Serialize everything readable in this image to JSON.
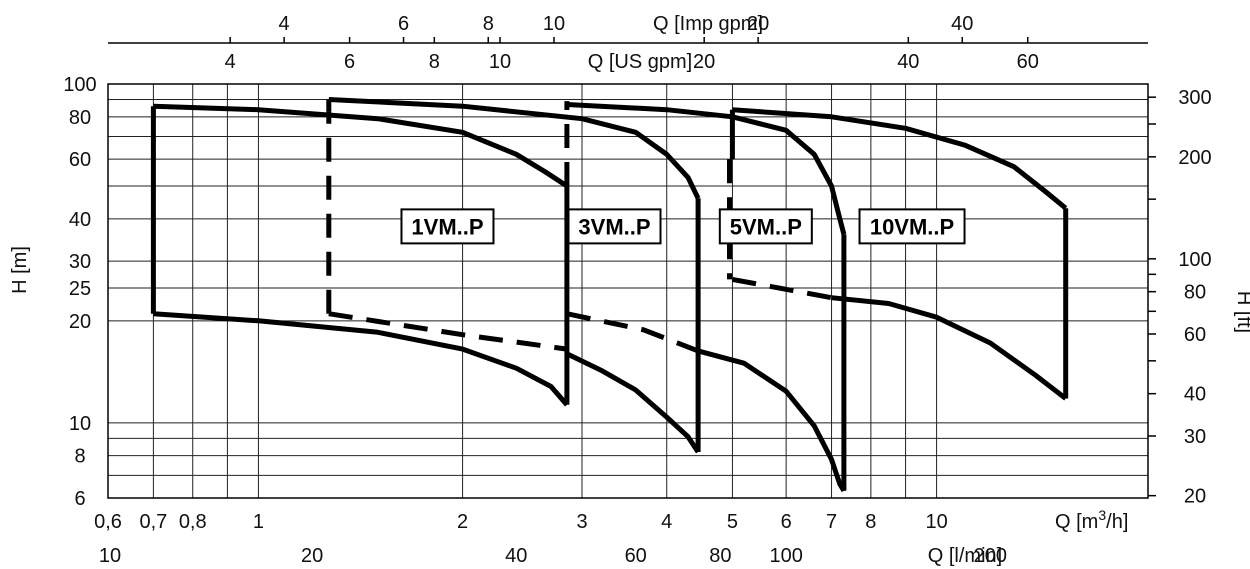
{
  "chart_data": {
    "type": "line",
    "scale": "log-log",
    "xlabel": "Q [m3/h]",
    "ylabel": "H [m]",
    "x_ticks": [
      0.6,
      0.7,
      0.8,
      1,
      2,
      3,
      4,
      5,
      6,
      7,
      8,
      10
    ],
    "x_tick_labels": [
      "0,6",
      "0,7",
      "0,8",
      "1",
      "2",
      "3",
      "4",
      "5",
      "6",
      "7",
      "8",
      "10"
    ],
    "xlim": [
      0.6,
      20.5
    ],
    "ylim": [
      6,
      100
    ],
    "y_ticks": [
      6,
      8,
      10,
      20,
      25,
      30,
      40,
      60,
      80,
      100
    ],
    "y_grid": [
      6,
      7,
      8,
      9,
      10,
      20,
      25,
      30,
      40,
      50,
      60,
      70,
      80,
      90,
      100
    ],
    "x_grid": [
      0.7,
      0.8,
      0.9,
      1,
      2,
      3,
      4,
      5,
      6,
      7,
      8,
      9,
      10
    ],
    "secondary_axes": {
      "lpm": {
        "label": "Q [l/min]",
        "ticks": [
          10,
          20,
          40,
          60,
          80,
          100,
          200
        ]
      },
      "us_gpm": {
        "label": "Q [US gpm]",
        "ticks": [
          4,
          6,
          8,
          10,
          20,
          40,
          60
        ]
      },
      "imp_gpm": {
        "label": "Q [Imp gpm]",
        "ticks": [
          4,
          6,
          8,
          10,
          20,
          40
        ]
      },
      "ft": {
        "label": "H [ft]",
        "ticks": [
          20,
          30,
          40,
          60,
          80,
          100,
          200,
          300
        ]
      }
    },
    "series": [
      {
        "name": "1VM..P",
        "label_at": [
          1.9,
          38
        ],
        "upper": [
          [
            0.7,
            86
          ],
          [
            1.0,
            84
          ],
          [
            1.5,
            79
          ],
          [
            2.0,
            72
          ],
          [
            2.4,
            62
          ],
          [
            2.65,
            55
          ],
          [
            2.85,
            50
          ]
        ],
        "lower": [
          [
            0.7,
            21
          ],
          [
            1.0,
            20
          ],
          [
            1.5,
            18.5
          ],
          [
            2.0,
            16.5
          ],
          [
            2.4,
            14.5
          ],
          [
            2.7,
            12.8
          ],
          [
            2.85,
            11.3
          ]
        ],
        "dashed": [
          [
            1.27,
            21
          ],
          [
            1.27,
            83
          ]
        ]
      },
      {
        "name": "3VM..P",
        "label_at": [
          3.35,
          38
        ],
        "upper": [
          [
            1.27,
            90
          ],
          [
            2.0,
            86
          ],
          [
            3.0,
            79
          ],
          [
            3.6,
            72
          ],
          [
            4.0,
            62
          ],
          [
            4.3,
            53
          ],
          [
            4.45,
            46
          ]
        ],
        "lower": [
          [
            2.85,
            16
          ],
          [
            3.2,
            14.3
          ],
          [
            3.6,
            12.5
          ],
          [
            4.0,
            10.4
          ],
          [
            4.3,
            9.1
          ],
          [
            4.45,
            8.2
          ]
        ],
        "dashed": [
          [
            1.27,
            21
          ],
          [
            2.0,
            18.2
          ],
          [
            2.85,
            16.5
          ]
        ],
        "dashed2": [
          [
            2.85,
            50
          ],
          [
            2.85,
            89
          ]
        ]
      },
      {
        "name": "5VM..P",
        "label_at": [
          5.6,
          38
        ],
        "upper": [
          [
            2.85,
            87
          ],
          [
            4.0,
            84
          ],
          [
            5.0,
            80
          ],
          [
            6.0,
            73
          ],
          [
            6.6,
            62
          ],
          [
            7.0,
            50
          ],
          [
            7.2,
            40
          ],
          [
            7.3,
            36
          ]
        ],
        "lower": [
          [
            4.45,
            16.3
          ],
          [
            5.2,
            15
          ],
          [
            6.0,
            12.4
          ],
          [
            6.6,
            9.8
          ],
          [
            7.0,
            7.8
          ],
          [
            7.2,
            6.6
          ],
          [
            7.3,
            6.3
          ]
        ],
        "dashed": [
          [
            2.85,
            21
          ],
          [
            3.7,
            18.8
          ],
          [
            4.45,
            16.3
          ]
        ]
      },
      {
        "name": "10VM..P",
        "label_at": [
          9.2,
          38
        ],
        "upper": [
          [
            5.0,
            84
          ],
          [
            7.0,
            80
          ],
          [
            9.0,
            74
          ],
          [
            11.0,
            66
          ],
          [
            13.0,
            57
          ],
          [
            14.5,
            48
          ],
          [
            15.5,
            43
          ]
        ],
        "lower": [
          [
            7.0,
            23.4
          ],
          [
            8.5,
            22.5
          ],
          [
            10.0,
            20.5
          ],
          [
            12.0,
            17.2
          ],
          [
            14.0,
            13.8
          ],
          [
            15.5,
            11.8
          ]
        ],
        "dashed": [
          [
            5.0,
            26.5
          ],
          [
            7.0,
            23.4
          ]
        ],
        "dashed2": [
          [
            4.95,
            60
          ],
          [
            4.95,
            26.5
          ]
        ]
      }
    ]
  }
}
